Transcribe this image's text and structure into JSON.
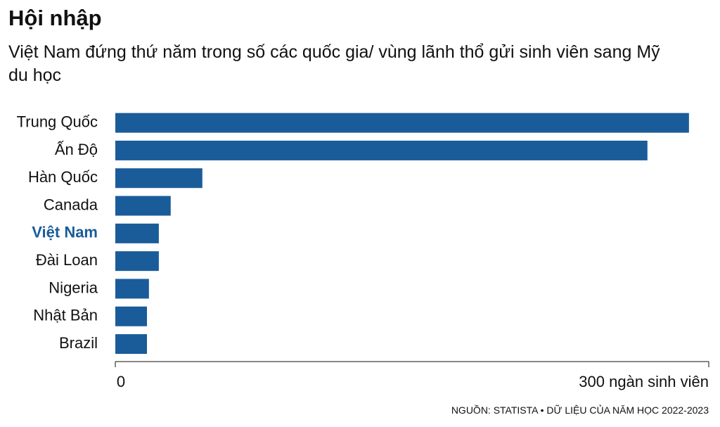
{
  "chart_data": {
    "type": "hbar",
    "title": "Hội nhập",
    "subtitle": "Việt Nam đứng thứ năm trong số các quốc gia/ vùng lãnh thổ gửi sinh viên sang Mỹ du học",
    "source": "NGUỒN: STATISTA • DỮ LIỆU CỦA NĂM HỌC 2022-2023",
    "categories": [
      "Trung Quốc",
      "Ấn Độ",
      "Hàn Quốc",
      "Canada",
      "Việt Nam",
      "Đài Loan",
      "Nigeria",
      "Nhật Bản",
      "Brazil"
    ],
    "values": [
      290,
      269,
      44,
      28,
      22,
      22,
      17,
      16,
      16
    ],
    "color": "#1a5c9a",
    "highlight": 4,
    "xlim": [
      0,
      300
    ],
    "xticks": [
      0,
      {
        "value": 300,
        "label": "300 ngàn sinh viên"
      }
    ]
  }
}
